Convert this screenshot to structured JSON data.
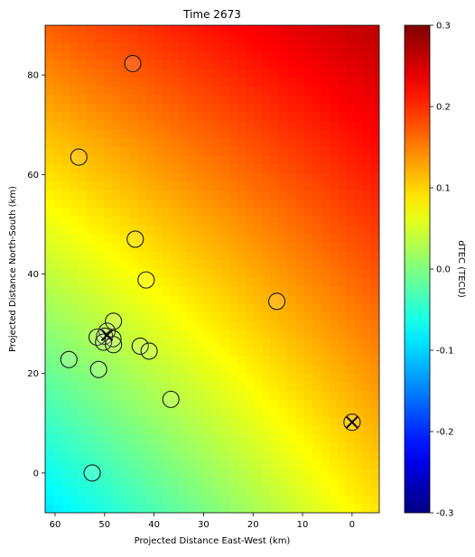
{
  "chart_data": {
    "type": "heatmap",
    "title": "Time 2673",
    "xlabel": "Projected Distance East-West (km)",
    "ylabel": "Projected Distance North-South (km)",
    "xlim": [
      62,
      -5.5
    ],
    "ylim": [
      -8,
      90
    ],
    "x_reversed": true,
    "xticks": [
      60,
      50,
      40,
      30,
      20,
      10,
      0
    ],
    "yticks": [
      0,
      20,
      40,
      60,
      80
    ],
    "grid": false,
    "colormap": "jet",
    "colorbar": {
      "label": "dTEC (TECU)",
      "vmin": -0.3,
      "vmax": 0.3,
      "ticks": [
        "-0.3",
        "-0.2",
        "-0.1",
        "0.0",
        "0.1",
        "0.2",
        "0.3"
      ]
    },
    "field_corners": {
      "bottom_left": -0.09,
      "bottom_right": 0.09,
      "top_left": 0.17,
      "top_right": 0.265
    },
    "circle_markers": [
      {
        "x": 44.3,
        "y": 82.3
      },
      {
        "x": 55.2,
        "y": 63.5
      },
      {
        "x": 43.8,
        "y": 47.0
      },
      {
        "x": 41.6,
        "y": 38.8
      },
      {
        "x": 15.2,
        "y": 34.5
      },
      {
        "x": 48.2,
        "y": 30.5
      },
      {
        "x": 49.5,
        "y": 28.5
      },
      {
        "x": 50.0,
        "y": 27.5
      },
      {
        "x": 51.5,
        "y": 27.3
      },
      {
        "x": 48.3,
        "y": 27.0
      },
      {
        "x": 50.2,
        "y": 26.3
      },
      {
        "x": 48.2,
        "y": 25.8
      },
      {
        "x": 42.8,
        "y": 25.5
      },
      {
        "x": 41.0,
        "y": 24.5
      },
      {
        "x": 57.2,
        "y": 22.8
      },
      {
        "x": 51.2,
        "y": 20.8
      },
      {
        "x": 36.6,
        "y": 14.8
      },
      {
        "x": 0.0,
        "y": 10.2
      },
      {
        "x": 52.5,
        "y": 0.0
      }
    ],
    "x_markers": [
      {
        "x": 49.5,
        "y": 27.7
      },
      {
        "x": 0.0,
        "y": 10.2
      }
    ]
  }
}
